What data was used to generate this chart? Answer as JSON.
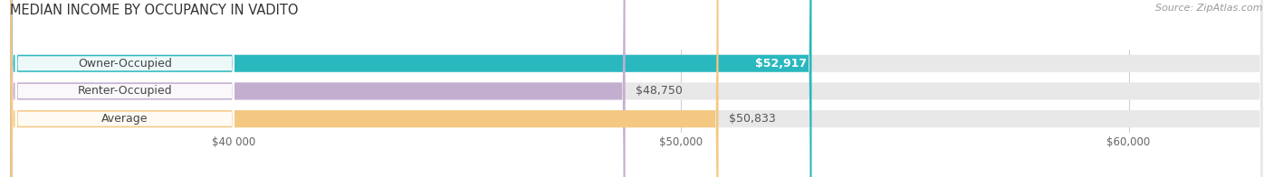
{
  "title": "MEDIAN INCOME BY OCCUPANCY IN VADITO",
  "source": "Source: ZipAtlas.com",
  "categories": [
    "Owner-Occupied",
    "Renter-Occupied",
    "Average"
  ],
  "values": [
    52917,
    48750,
    50833
  ],
  "bar_colors": [
    "#2ab8bf",
    "#c4aed0",
    "#f5c882"
  ],
  "bar_bg_color": "#e8e8e8",
  "value_labels": [
    "$52,917",
    "$48,750",
    "$50,833"
  ],
  "owner_value_inside": true,
  "xlim": [
    35000,
    63000
  ],
  "xstart": 35000,
  "xticks": [
    40000,
    50000,
    60000
  ],
  "bar_height": 0.62,
  "fig_width": 14.06,
  "fig_height": 1.96,
  "title_fontsize": 10.5,
  "source_fontsize": 8,
  "label_fontsize": 9,
  "value_fontsize": 9
}
